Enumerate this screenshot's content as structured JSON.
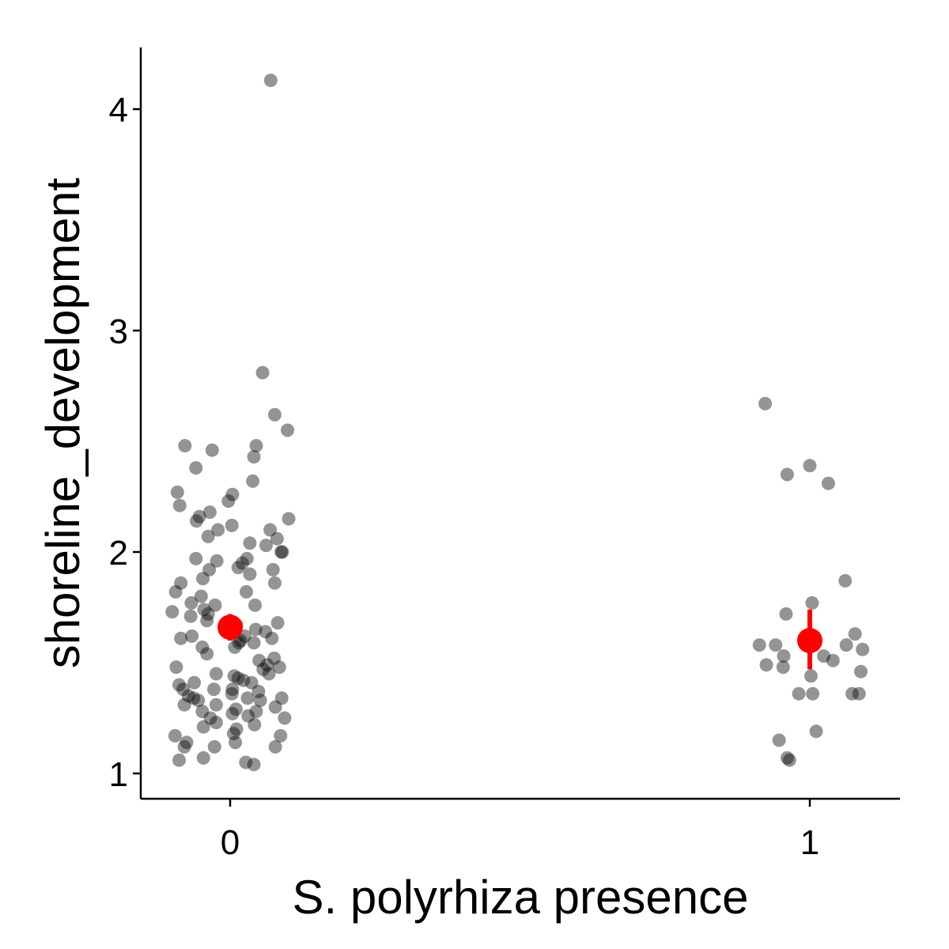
{
  "chart_data": {
    "type": "scatter",
    "xlabel": "S. polyrhiza presence",
    "ylabel": "shoreline_development",
    "categories": [
      "0",
      "1"
    ],
    "yticks": [
      1,
      2,
      3,
      4
    ],
    "ylim": [
      0.89,
      4.28
    ],
    "grid": false,
    "colors": {
      "points": "#000000",
      "summary": "#ff0000",
      "axis": "#000000"
    },
    "point_opacity": 0.42,
    "series": [
      {
        "group": "0",
        "points": [
          {
            "x": 0.07,
            "y": 4.13
          },
          {
            "x": 0.056,
            "y": 2.81
          },
          {
            "x": 0.077,
            "y": 2.62
          },
          {
            "x": 0.099,
            "y": 2.55
          },
          {
            "x": 0.045,
            "y": 2.48
          },
          {
            "x": -0.078,
            "y": 2.48
          },
          {
            "x": -0.031,
            "y": 2.46
          },
          {
            "x": 0.041,
            "y": 2.43
          },
          {
            "x": -0.059,
            "y": 2.38
          },
          {
            "x": 0.039,
            "y": 2.32
          },
          {
            "x": -0.091,
            "y": 2.27
          },
          {
            "x": 0.004,
            "y": 2.26
          },
          {
            "x": -0.003,
            "y": 2.23
          },
          {
            "x": -0.087,
            "y": 2.21
          },
          {
            "x": -0.035,
            "y": 2.18
          },
          {
            "x": -0.053,
            "y": 2.16
          },
          {
            "x": 0.101,
            "y": 2.15
          },
          {
            "x": -0.058,
            "y": 2.14
          },
          {
            "x": 0.003,
            "y": 2.12
          },
          {
            "x": -0.021,
            "y": 2.1
          },
          {
            "x": 0.069,
            "y": 2.1
          },
          {
            "x": -0.038,
            "y": 2.07
          },
          {
            "x": 0.081,
            "y": 2.06
          },
          {
            "x": 0.034,
            "y": 2.04
          },
          {
            "x": 0.062,
            "y": 2.03
          },
          {
            "x": 0.088,
            "y": 2.0
          },
          {
            "x": 0.09,
            "y": 2.0
          },
          {
            "x": -0.059,
            "y": 1.97
          },
          {
            "x": 0.029,
            "y": 1.97
          },
          {
            "x": -0.023,
            "y": 1.96
          },
          {
            "x": 0.021,
            "y": 1.95
          },
          {
            "x": 0.014,
            "y": 1.93
          },
          {
            "x": -0.036,
            "y": 1.92
          },
          {
            "x": 0.074,
            "y": 1.92
          },
          {
            "x": 0.034,
            "y": 1.9
          },
          {
            "x": -0.047,
            "y": 1.88
          },
          {
            "x": -0.085,
            "y": 1.86
          },
          {
            "x": 0.077,
            "y": 1.86
          },
          {
            "x": -0.094,
            "y": 1.82
          },
          {
            "x": 0.028,
            "y": 1.82
          },
          {
            "x": -0.05,
            "y": 1.8
          },
          {
            "x": -0.067,
            "y": 1.77
          },
          {
            "x": -0.026,
            "y": 1.76
          },
          {
            "x": 0.043,
            "y": 1.76
          },
          {
            "x": -0.045,
            "y": 1.74
          },
          {
            "x": -0.1,
            "y": 1.73
          },
          {
            "x": -0.038,
            "y": 1.72
          },
          {
            "x": -0.068,
            "y": 1.71
          },
          {
            "x": -0.04,
            "y": 1.69
          },
          {
            "x": 0.082,
            "y": 1.68
          },
          {
            "x": 0.011,
            "y": 1.67
          },
          {
            "x": 0.044,
            "y": 1.65
          },
          {
            "x": 0.061,
            "y": 1.64
          },
          {
            "x": -0.066,
            "y": 1.62
          },
          {
            "x": 0.025,
            "y": 1.62
          },
          {
            "x": -0.085,
            "y": 1.61
          },
          {
            "x": 0.072,
            "y": 1.61
          },
          {
            "x": 0.018,
            "y": 1.6
          },
          {
            "x": 0.041,
            "y": 1.59
          },
          {
            "x": 0.015,
            "y": 1.59
          },
          {
            "x": 0.008,
            "y": 1.57
          },
          {
            "x": -0.048,
            "y": 1.57
          },
          {
            "x": -0.04,
            "y": 1.54
          },
          {
            "x": 0.076,
            "y": 1.52
          },
          {
            "x": 0.05,
            "y": 1.51
          },
          {
            "x": 0.064,
            "y": 1.49
          },
          {
            "x": -0.093,
            "y": 1.48
          },
          {
            "x": 0.085,
            "y": 1.48
          },
          {
            "x": 0.057,
            "y": 1.47
          },
          {
            "x": -0.024,
            "y": 1.45
          },
          {
            "x": 0.067,
            "y": 1.45
          },
          {
            "x": 0.007,
            "y": 1.44
          },
          {
            "x": 0.014,
            "y": 1.43
          },
          {
            "x": 0.023,
            "y": 1.42
          },
          {
            "x": -0.088,
            "y": 1.4
          },
          {
            "x": -0.062,
            "y": 1.41
          },
          {
            "x": 0.037,
            "y": 1.41
          },
          {
            "x": 0.004,
            "y": 1.38
          },
          {
            "x": -0.081,
            "y": 1.38
          },
          {
            "x": -0.028,
            "y": 1.38
          },
          {
            "x": 0.049,
            "y": 1.37
          },
          {
            "x": 0.003,
            "y": 1.36
          },
          {
            "x": -0.072,
            "y": 1.35
          },
          {
            "x": -0.063,
            "y": 1.34
          },
          {
            "x": 0.089,
            "y": 1.34
          },
          {
            "x": 0.03,
            "y": 1.34
          },
          {
            "x": -0.055,
            "y": 1.33
          },
          {
            "x": 0.052,
            "y": 1.33
          },
          {
            "x": -0.079,
            "y": 1.31
          },
          {
            "x": -0.024,
            "y": 1.31
          },
          {
            "x": 0.078,
            "y": 1.3
          },
          {
            "x": 0.01,
            "y": 1.29
          },
          {
            "x": 0.045,
            "y": 1.28
          },
          {
            "x": -0.048,
            "y": 1.28
          },
          {
            "x": 0.004,
            "y": 1.27
          },
          {
            "x": 0.031,
            "y": 1.26
          },
          {
            "x": 0.094,
            "y": 1.25
          },
          {
            "x": -0.034,
            "y": 1.25
          },
          {
            "x": -0.024,
            "y": 1.23
          },
          {
            "x": 0.042,
            "y": 1.22
          },
          {
            "x": -0.046,
            "y": 1.21
          },
          {
            "x": 0.011,
            "y": 1.2
          },
          {
            "x": 0.006,
            "y": 1.18
          },
          {
            "x": -0.095,
            "y": 1.17
          },
          {
            "x": 0.087,
            "y": 1.17
          },
          {
            "x": -0.075,
            "y": 1.14
          },
          {
            "x": 0.009,
            "y": 1.14
          },
          {
            "x": -0.079,
            "y": 1.12
          },
          {
            "x": -0.027,
            "y": 1.12
          },
          {
            "x": 0.078,
            "y": 1.12
          },
          {
            "x": -0.088,
            "y": 1.06
          },
          {
            "x": -0.046,
            "y": 1.07
          },
          {
            "x": 0.027,
            "y": 1.05
          },
          {
            "x": 0.041,
            "y": 1.04
          }
        ]
      },
      {
        "group": "1",
        "points": [
          {
            "x": -0.077,
            "y": 2.67
          },
          {
            "x": 0,
            "y": 2.39
          },
          {
            "x": -0.039,
            "y": 2.35
          },
          {
            "x": 0.032,
            "y": 2.31
          },
          {
            "x": 0.061,
            "y": 1.87
          },
          {
            "x": 0.004,
            "y": 1.77
          },
          {
            "x": -0.041,
            "y": 1.72
          },
          {
            "x": 0.078,
            "y": 1.63
          },
          {
            "x": -0.087,
            "y": 1.58
          },
          {
            "x": -0.059,
            "y": 1.58
          },
          {
            "x": 0.063,
            "y": 1.58
          },
          {
            "x": 0.091,
            "y": 1.56
          },
          {
            "x": -0.045,
            "y": 1.53
          },
          {
            "x": 0.024,
            "y": 1.53
          },
          {
            "x": 0.04,
            "y": 1.51
          },
          {
            "x": -0.075,
            "y": 1.49
          },
          {
            "x": -0.046,
            "y": 1.48
          },
          {
            "x": 0.088,
            "y": 1.46
          },
          {
            "x": 0.002,
            "y": 1.44
          },
          {
            "x": -0.019,
            "y": 1.36
          },
          {
            "x": 0.005,
            "y": 1.36
          },
          {
            "x": 0.073,
            "y": 1.36
          },
          {
            "x": 0.085,
            "y": 1.36
          },
          {
            "x": 0.011,
            "y": 1.19
          },
          {
            "x": -0.053,
            "y": 1.15
          },
          {
            "x": -0.039,
            "y": 1.07
          },
          {
            "x": -0.035,
            "y": 1.06
          }
        ]
      }
    ],
    "summary": [
      {
        "group": "0",
        "mean": 1.66,
        "lower": 1.6,
        "upper": 1.72
      },
      {
        "group": "1",
        "mean": 1.6,
        "lower": 1.47,
        "upper": 1.74
      }
    ]
  }
}
